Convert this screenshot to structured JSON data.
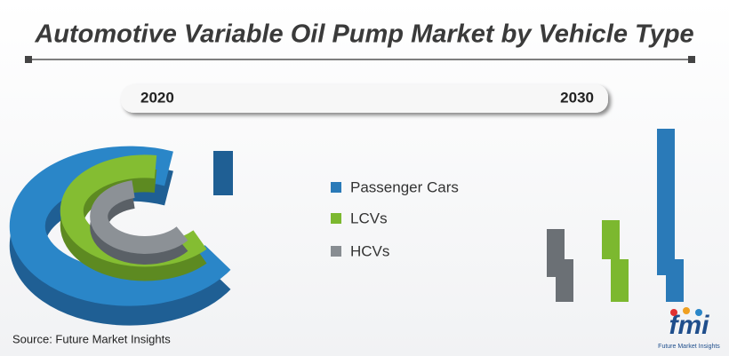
{
  "title": "Automotive Variable Oil Pump Market by Vehicle Type",
  "timeline": {
    "start": "2020",
    "end": "2030"
  },
  "legend": [
    "Passenger Cars",
    "LCVs",
    "HCVs"
  ],
  "source": "Source: Future Market Insights",
  "logo": {
    "mark": "fmi",
    "name": "Future Market Insights"
  }
}
